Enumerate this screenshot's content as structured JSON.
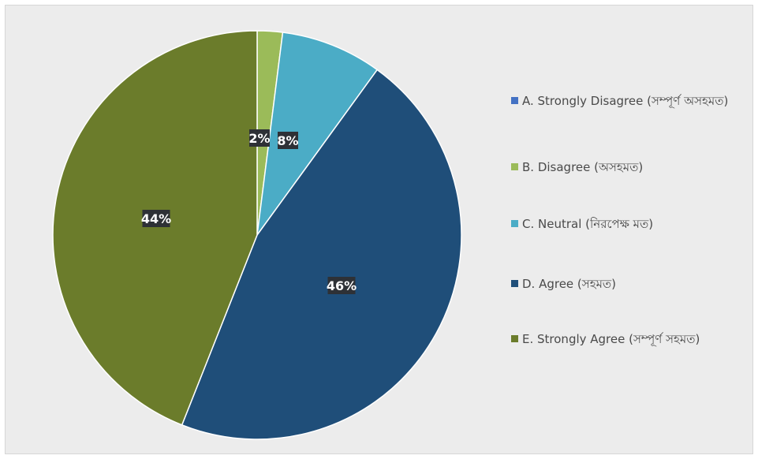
{
  "chart_data": {
    "type": "pie",
    "start_angle_deg": 0,
    "slices": [
      {
        "label": "A. Strongly Disagree (সম্পূর্ণ অসহমত)",
        "value": 0,
        "color": "#4472c4",
        "data_label": ""
      },
      {
        "label": "B. Disagree (অসহমত)",
        "value": 2,
        "color": "#9bbb59",
        "data_label": "2%"
      },
      {
        "label": "C. Neutral (নিরপেক্ষ মত)",
        "value": 8,
        "color": "#4bacc6",
        "data_label": "8%"
      },
      {
        "label": "D. Agree (সহমত)",
        "value": 46,
        "color": "#1f4e79",
        "data_label": "46%"
      },
      {
        "label": "E. Strongly Agree (সম্পূর্ণ সহমত)",
        "value": 44,
        "color": "#6b7c2b",
        "data_label": "44%"
      }
    ],
    "legend_position": "right",
    "colors": {
      "label_box": "#2e3136",
      "label_text": "#ffffff",
      "border": "#ffffff"
    }
  }
}
